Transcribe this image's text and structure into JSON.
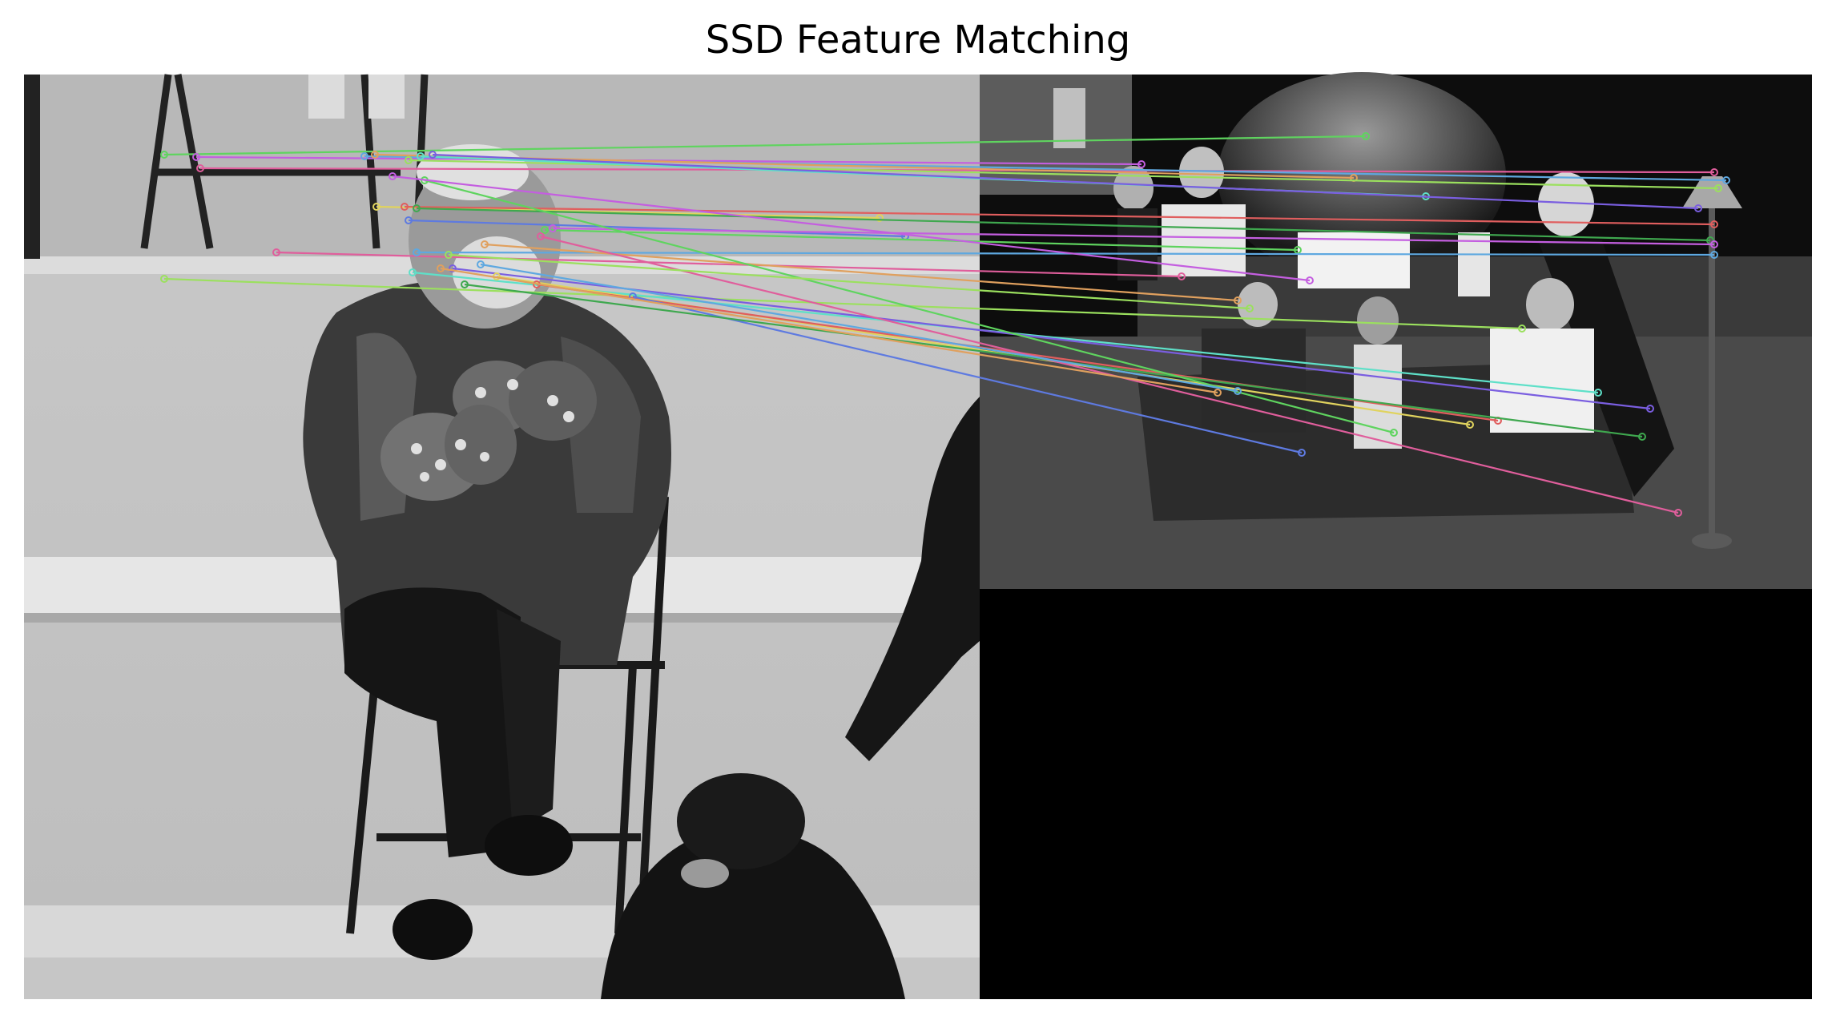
{
  "figure": {
    "title": "SSD Feature Matching"
  },
  "colors": {
    "background": "#ffffff",
    "left_wall": "#c2c2c2",
    "right_bg": "#000000",
    "bottom_black": "#000000",
    "match_palette": [
      "#5fd45f",
      "#c45ee0",
      "#e05e9c",
      "#5ea8e0",
      "#e0a05e",
      "#9be05e",
      "#5ee0c8",
      "#7a5ee0",
      "#e0d35e",
      "#e05e5e",
      "#5e7ae0",
      "#3fa84f"
    ]
  },
  "scene": {
    "left_image": "grayscale photo of seated man in parka and patterned mittens on folding chair",
    "right_image": "grayscale group photo on couch in front of fountain"
  }
}
